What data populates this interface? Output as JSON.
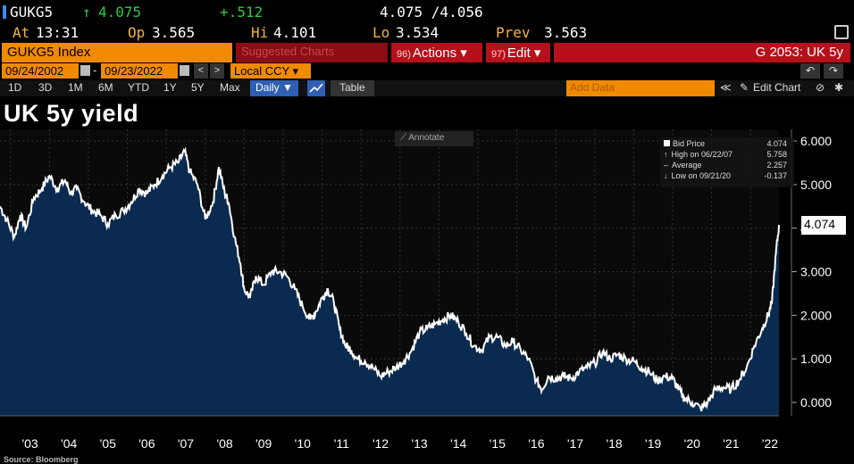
{
  "quote": {
    "ticker": "GUKG5",
    "last_arrow": "↑",
    "last": "4.075",
    "change": "+.512",
    "bid_ask": "4.075 /4.056",
    "at_label": "At",
    "at_time": "13:31",
    "open_label": "Op",
    "open": "3.565",
    "high_label": "Hi",
    "high": "4.101",
    "low_label": "Lo",
    "low": "3.534",
    "prev_label": "Prev",
    "prev": "3.563"
  },
  "toolbar": {
    "index_name": "GUKG5 Index",
    "suggested_num": "96)",
    "suggested": "Suggested Charts",
    "actions_num": "96)",
    "actions": "Actions ▾",
    "edit_num": "97)",
    "edit": "Edit ▾",
    "chart_id": "G 2053: UK 5y"
  },
  "range": {
    "start": "09/24/2002",
    "end": "09/23/2022",
    "prev_btn": "<",
    "next_btn": ">",
    "currency": "Local CCY ▾",
    "undo": "↶",
    "redo": "↷"
  },
  "periods": [
    "1D",
    "3D",
    "1M",
    "6M",
    "YTD",
    "1Y",
    "5Y",
    "Max"
  ],
  "frequency": "Daily ▼",
  "table_btn": "Table",
  "add_data_placeholder": "Add Data",
  "edit_chart": "Edit Chart",
  "collapse": "≪",
  "chart_title": "UK 5y yield",
  "annotate": "Annotate",
  "legend": {
    "rows": [
      {
        "label": "Bid Price",
        "value": "4.074"
      },
      {
        "label": "High on 06/22/07",
        "value": "5.758"
      },
      {
        "label": "Average",
        "value": "2.257"
      },
      {
        "label": "Low on 09/21/20",
        "value": "-0.137"
      }
    ]
  },
  "last_price_label": "4.074",
  "source": "Source: Bloomberg",
  "colors": {
    "area": "#0a2a4f",
    "line": "#ffffff",
    "accent": "#f08a00",
    "red": "#b5101b"
  },
  "chart_data": {
    "type": "area",
    "title": "UK 5y yield",
    "xlabel": "",
    "ylabel": "",
    "x_range": [
      2002.73,
      2022.73
    ],
    "ylim": [
      -0.4,
      6.2
    ],
    "y_ticks": [
      "0.000",
      "1.000",
      "2.000",
      "3.000",
      "4.000",
      "5.000",
      "6.000"
    ],
    "x_ticks": [
      "'03",
      "'04",
      "'05",
      "'06",
      "'07",
      "'08",
      "'09",
      "'10",
      "'11",
      "'12",
      "'13",
      "'14",
      "'15",
      "'16",
      "'17",
      "'18",
      "'19",
      "'20",
      "'21",
      "'22"
    ],
    "grid": true,
    "series": [
      {
        "x": [
          2002.73,
          2002.9,
          2003.1,
          2003.25,
          2003.4,
          2003.6,
          2003.8,
          2004.0,
          2004.2,
          2004.4,
          2004.55,
          2004.7,
          2004.9,
          2005.1,
          2005.3,
          2005.5,
          2005.7,
          2005.9,
          2006.1,
          2006.3,
          2006.5,
          2006.7,
          2006.9,
          2007.1,
          2007.3,
          2007.47,
          2007.6,
          2007.8,
          2008.0,
          2008.2,
          2008.35,
          2008.5,
          2008.6,
          2008.75,
          2008.9,
          2009.0,
          2009.15,
          2009.3,
          2009.5,
          2009.7,
          2009.9,
          2010.1,
          2010.3,
          2010.5,
          2010.7,
          2010.85,
          2011.0,
          2011.15,
          2011.3,
          2011.45,
          2011.6,
          2011.75,
          2011.9,
          2012.1,
          2012.3,
          2012.5,
          2012.7,
          2012.9,
          2013.1,
          2013.3,
          2013.5,
          2013.7,
          2013.9,
          2014.1,
          2014.3,
          2014.5,
          2014.7,
          2014.9,
          2015.1,
          2015.3,
          2015.5,
          2015.7,
          2015.9,
          2016.1,
          2016.3,
          2016.5,
          2016.65,
          2016.8,
          2017.0,
          2017.2,
          2017.4,
          2017.6,
          2017.8,
          2018.0,
          2018.2,
          2018.4,
          2018.6,
          2018.8,
          2019.0,
          2019.2,
          2019.4,
          2019.6,
          2019.8,
          2020.0,
          2020.15,
          2020.3,
          2020.5,
          2020.72,
          2020.9,
          2021.1,
          2021.3,
          2021.5,
          2021.7,
          2021.9,
          2022.1,
          2022.3,
          2022.45,
          2022.55,
          2022.65,
          2022.73
        ],
        "y": [
          4.5,
          4.2,
          3.8,
          4.3,
          4.0,
          4.7,
          4.9,
          5.2,
          4.9,
          5.1,
          4.8,
          4.9,
          4.6,
          4.4,
          4.3,
          4.1,
          4.3,
          4.4,
          4.6,
          4.9,
          4.8,
          5.0,
          5.2,
          5.4,
          5.5,
          5.76,
          5.3,
          5.0,
          4.2,
          4.6,
          5.4,
          4.8,
          4.6,
          3.8,
          3.2,
          2.6,
          2.4,
          2.9,
          2.7,
          3.0,
          3.0,
          2.9,
          2.6,
          2.2,
          1.9,
          2.1,
          2.4,
          2.6,
          2.3,
          1.7,
          1.3,
          1.2,
          1.0,
          0.95,
          0.8,
          0.6,
          0.7,
          0.8,
          0.95,
          1.2,
          1.6,
          1.7,
          1.8,
          1.9,
          2.0,
          1.85,
          1.6,
          1.3,
          1.2,
          1.5,
          1.5,
          1.3,
          1.4,
          1.2,
          1.0,
          0.5,
          0.3,
          0.6,
          0.55,
          0.6,
          0.55,
          0.7,
          0.8,
          0.9,
          1.15,
          1.0,
          1.1,
          1.0,
          0.95,
          0.8,
          0.7,
          0.5,
          0.6,
          0.55,
          0.3,
          0.1,
          0.0,
          -0.137,
          0.0,
          0.3,
          0.35,
          0.3,
          0.5,
          0.8,
          1.3,
          1.7,
          2.0,
          2.3,
          3.4,
          4.074
        ]
      }
    ]
  }
}
